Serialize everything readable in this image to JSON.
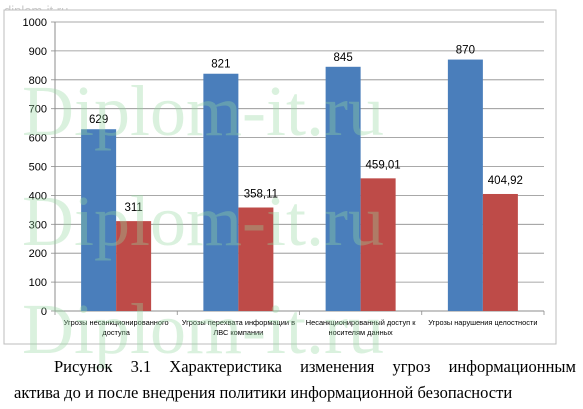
{
  "watermark": {
    "site": "diplom-it.ru",
    "big_text": "Diplom-it.ru"
  },
  "chart_data": {
    "type": "bar",
    "categories": [
      [
        "Угрозы несанкционированного",
        "доступа"
      ],
      [
        "Угрозы перехвата  информации в",
        "ЛВС компании"
      ],
      [
        "Несанкционированный доступ  к",
        "носителям данных"
      ],
      [
        "Угрозы нарушения целостности",
        ""
      ]
    ],
    "series": [
      {
        "values": [
          629,
          821,
          845,
          870
        ],
        "labels": [
          "629",
          "821",
          "845",
          "870"
        ],
        "color": "#4a7ebb"
      },
      {
        "values": [
          311,
          358.11,
          459.01,
          404.92
        ],
        "labels": [
          "311",
          "358,11",
          "459,01",
          "404,92"
        ],
        "color": "#be4b48"
      }
    ],
    "ylim": [
      0,
      1000
    ],
    "yticks": [
      0,
      100,
      200,
      300,
      400,
      500,
      600,
      700,
      800,
      900,
      1000
    ],
    "grid": true,
    "legend": "none"
  },
  "caption": {
    "line1_words": [
      "Рисунок",
      "3.1",
      "Характеристика",
      "изменения",
      "угроз",
      "информационным"
    ],
    "line2": "актива до и после внедрения политики информационной безопасности"
  }
}
